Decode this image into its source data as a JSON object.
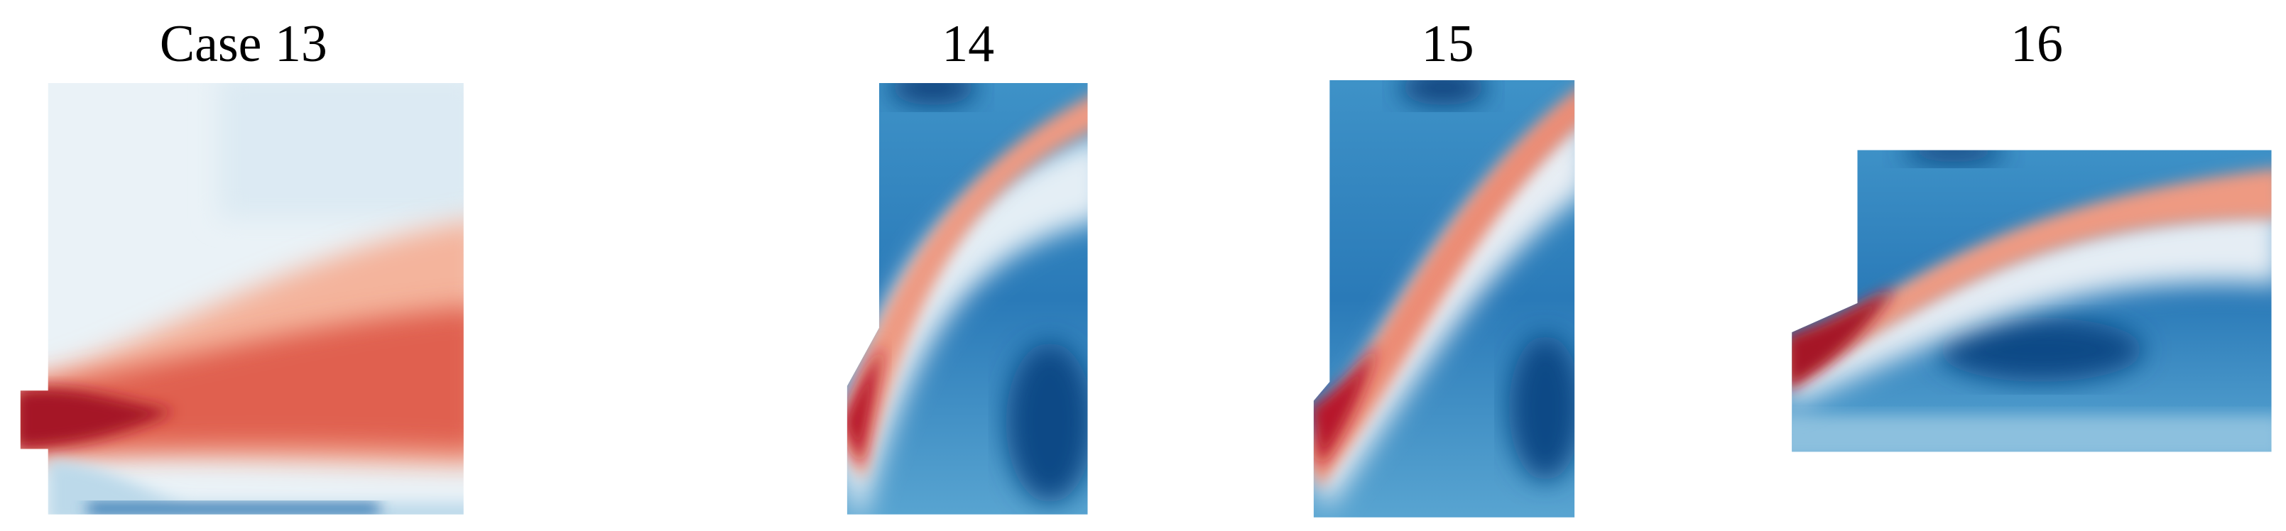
{
  "panels": [
    {
      "title": "Case 13"
    },
    {
      "title": "14"
    },
    {
      "title": "15"
    },
    {
      "title": "16"
    }
  ]
}
